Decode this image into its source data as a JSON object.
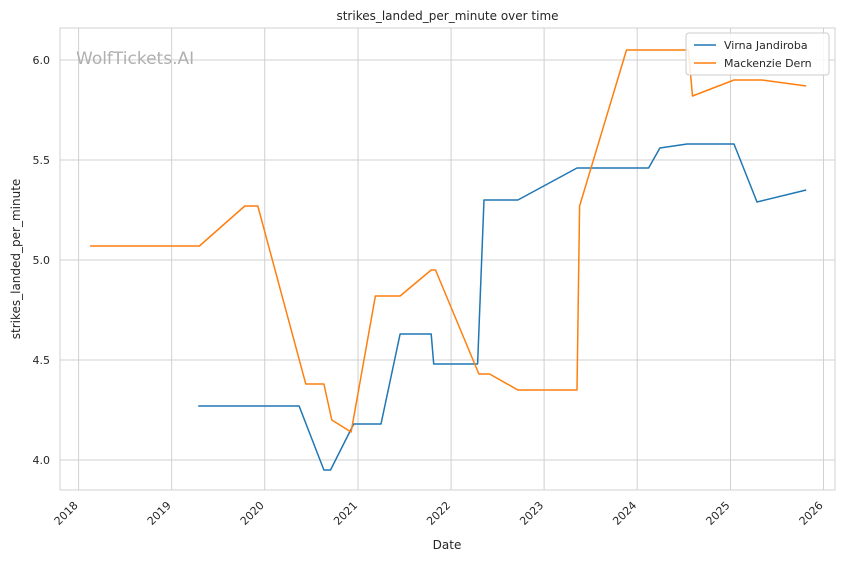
{
  "chart_data": {
    "type": "line",
    "title": "strikes_landed_per_minute over time",
    "xlabel": "Date",
    "ylabel": "strikes_landed_per_minute",
    "watermark": "WolfTickets.AI",
    "x_ticks": [
      "2018",
      "2019",
      "2020",
      "2021",
      "2022",
      "2023",
      "2024",
      "2025",
      "2026"
    ],
    "y_ticks": [
      "4.0",
      "4.5",
      "5.0",
      "5.5",
      "6.0"
    ],
    "xlim": [
      "2017-10-20",
      "2026-02-15"
    ],
    "ylim": [
      3.85,
      6.16
    ],
    "grid": true,
    "legend_position": "top-right",
    "colors": {
      "series1": "#1f77b4",
      "series2": "#ff7f0e"
    },
    "series": [
      {
        "name": "Virna Jandiroba",
        "color": "#1f77b4",
        "points": [
          [
            "2019-04-15",
            4.27
          ],
          [
            "2020-05-15",
            4.27
          ],
          [
            "2020-08-20",
            3.95
          ],
          [
            "2020-09-15",
            3.95
          ],
          [
            "2020-12-15",
            4.18
          ],
          [
            "2021-04-01",
            4.18
          ],
          [
            "2021-06-15",
            4.63
          ],
          [
            "2021-10-15",
            4.63
          ],
          [
            "2021-10-25",
            4.48
          ],
          [
            "2022-04-15",
            4.48
          ],
          [
            "2022-05-10",
            5.3
          ],
          [
            "2022-09-20",
            5.3
          ],
          [
            "2023-05-10",
            5.46
          ],
          [
            "2024-02-15",
            5.46
          ],
          [
            "2024-03-30",
            5.56
          ],
          [
            "2024-07-15",
            5.58
          ],
          [
            "2025-01-15",
            5.58
          ],
          [
            "2025-04-15",
            5.29
          ],
          [
            "2025-10-25",
            5.35
          ]
        ]
      },
      {
        "name": "Mackenzie Dern",
        "color": "#ff7f0e",
        "points": [
          [
            "2018-02-15",
            5.07
          ],
          [
            "2019-04-20",
            5.07
          ],
          [
            "2019-10-15",
            5.27
          ],
          [
            "2019-12-05",
            5.27
          ],
          [
            "2020-06-10",
            4.38
          ],
          [
            "2020-08-20",
            4.38
          ],
          [
            "2020-09-20",
            4.2
          ],
          [
            "2020-12-05",
            4.14
          ],
          [
            "2021-03-10",
            4.82
          ],
          [
            "2021-06-15",
            4.82
          ],
          [
            "2021-10-15",
            4.95
          ],
          [
            "2021-11-01",
            4.95
          ],
          [
            "2022-04-20",
            4.43
          ],
          [
            "2022-06-01",
            4.43
          ],
          [
            "2022-09-20",
            4.35
          ],
          [
            "2023-05-10",
            4.35
          ],
          [
            "2023-05-20",
            5.27
          ],
          [
            "2023-11-20",
            6.05
          ],
          [
            "2024-07-20",
            6.05
          ],
          [
            "2024-08-05",
            5.82
          ],
          [
            "2025-01-15",
            5.9
          ],
          [
            "2025-05-05",
            5.9
          ],
          [
            "2025-10-25",
            5.87
          ]
        ]
      }
    ]
  }
}
